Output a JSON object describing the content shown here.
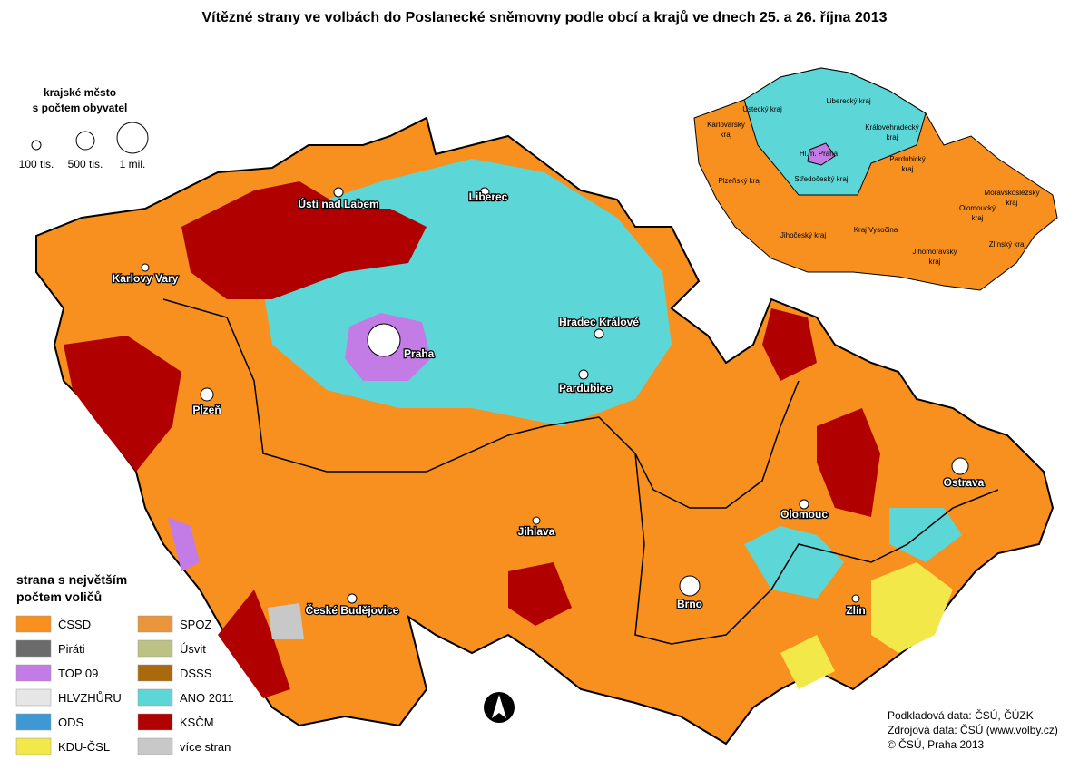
{
  "title": "Vítězné strany ve volbách do Poslanecké sněmovny podle obcí a krajů ve dnech 25. a 26. října 2013",
  "city_size_legend": {
    "title_lines": [
      "krajské město",
      "s počtem obyvatel"
    ],
    "items": [
      "100 tis.",
      "500 tis.",
      "1 mil."
    ]
  },
  "party_legend": {
    "title_lines": [
      "strana s největším",
      "počtem voličů"
    ],
    "items": [
      {
        "label": "ČSSD",
        "color": "#f7901e"
      },
      {
        "label": "Piráti",
        "color": "#6b6b6b"
      },
      {
        "label": "TOP 09",
        "color": "#c37be6"
      },
      {
        "label": "HLVZHŮRU",
        "color": "#e6e6e6"
      },
      {
        "label": "ODS",
        "color": "#3d98d3"
      },
      {
        "label": "KDU-ČSL",
        "color": "#f2e84a"
      },
      {
        "label": "SPOZ",
        "color": "#e9953c"
      },
      {
        "label": "Úsvit",
        "color": "#bcc283"
      },
      {
        "label": "DSSS",
        "color": "#a86a0c"
      },
      {
        "label": "ANO 2011",
        "color": "#5cd6d6"
      },
      {
        "label": "KSČM",
        "color": "#b10000"
      },
      {
        "label": "více stran",
        "color": "#c8c8c8"
      }
    ]
  },
  "cities": [
    "Praha",
    "Plzeň",
    "Karlovy Vary",
    "Ústí nad Labem",
    "Liberec",
    "Hradec Králové",
    "Pardubice",
    "České Budějovice",
    "Jihlava",
    "Brno",
    "Olomouc",
    "Zlín",
    "Ostrava"
  ],
  "inset_regions": [
    [
      "Karlovarský",
      "kraj"
    ],
    [
      "Ústecký kraj"
    ],
    [
      "Liberecký kraj"
    ],
    [
      "Královéhradecký",
      "kraj"
    ],
    [
      "Hl.m. Praha"
    ],
    [
      "Plzeňský kraj"
    ],
    [
      "Středočeský kraj"
    ],
    [
      "Pardubický",
      "kraj"
    ],
    [
      "Moravskoslezský",
      "kraj"
    ],
    [
      "Olomoucký",
      "kraj"
    ],
    [
      "Jihočeský kraj"
    ],
    [
      "Kraj Vysočina"
    ],
    [
      "Jihomoravský",
      "kraj"
    ],
    [
      "Zlínský kraj"
    ]
  ],
  "sources": [
    "Podkladová data: ČSÚ, ČÚZK",
    "Zdrojová data: ČSÚ (www.volby.cz)",
    "© ČSÚ, Praha 2013"
  ]
}
